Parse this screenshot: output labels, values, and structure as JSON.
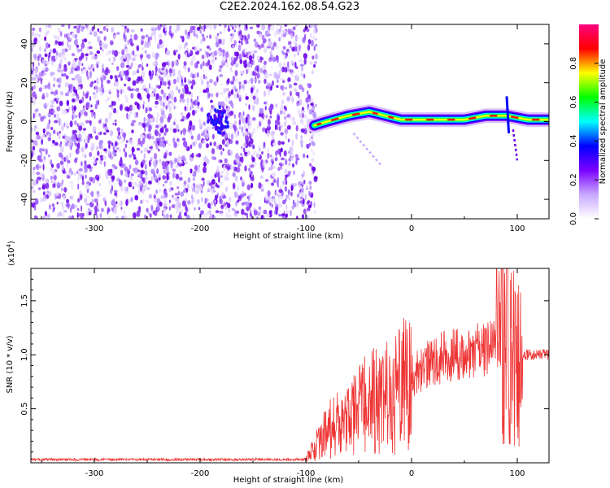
{
  "figure_title": "C2E2.2024.162.08.54.G23",
  "chart_data": [
    {
      "type": "heatmap",
      "xlabel": "Height of straight line (km)",
      "ylabel": "Frequency (Hz)",
      "xlim": [
        -360,
        130
      ],
      "ylim": [
        -50,
        50
      ],
      "xticks": [
        -300,
        -200,
        -100,
        0,
        100
      ],
      "yticks": [
        -40,
        -20,
        0,
        20,
        40
      ],
      "colorbar": {
        "label": "Normalized spectral amplitude",
        "range": [
          0.0,
          1.0
        ],
        "ticks": [
          "0.0",
          "0.2",
          "0.4",
          "0.6",
          "0.8"
        ],
        "colormap": [
          "#ffffff",
          "#c9a8ff",
          "#7b00ff",
          "#0000ff",
          "#00ffff",
          "#00ff00",
          "#ffff00",
          "#ff0000",
          "#ff0080"
        ]
      },
      "features": {
        "noise_region_x": [
          -360,
          -90
        ],
        "noise_cluster": {
          "x": -183,
          "y": 0
        },
        "signal_track": [
          [
            -92,
            -2
          ],
          [
            -80,
            0
          ],
          [
            -60,
            3
          ],
          [
            -40,
            5
          ],
          [
            -25,
            3
          ],
          [
            -10,
            1
          ],
          [
            10,
            1
          ],
          [
            30,
            1
          ],
          [
            50,
            1
          ],
          [
            70,
            3
          ],
          [
            90,
            3
          ],
          [
            110,
            1
          ],
          [
            130,
            1
          ]
        ],
        "streak_1": [
          [
            -55,
            -6
          ],
          [
            -28,
            -23
          ]
        ],
        "streak_2": [
          [
            96,
            -4
          ],
          [
            100,
            -20
          ]
        ]
      }
    },
    {
      "type": "line",
      "xlabel": "Height of straight line (km)",
      "ylabel": "SNR (10 * v/v)",
      "multiplier_label": "(x10",
      "multiplier_exp": "4",
      "multiplier_close": ")",
      "xlim": [
        -360,
        130
      ],
      "ylim": [
        0,
        18000
      ],
      "xticks": [
        -300,
        -200,
        -100,
        0,
        100
      ],
      "yticks": [
        5000,
        10000,
        15000
      ],
      "ytick_labels": [
        "0.5",
        "1.0",
        "1.5"
      ],
      "series": [
        {
          "color": "#ee3333",
          "envelope_x": [
            -360,
            -100,
            -80,
            -60,
            -40,
            -20,
            0,
            20,
            40,
            60,
            80,
            90,
            100,
            110,
            130
          ],
          "values": [
            300,
            300,
            3000,
            4000,
            5500,
            6000,
            8000,
            9500,
            10000,
            10500,
            10500,
            12000,
            10000,
            10000,
            10000
          ]
        }
      ]
    }
  ]
}
